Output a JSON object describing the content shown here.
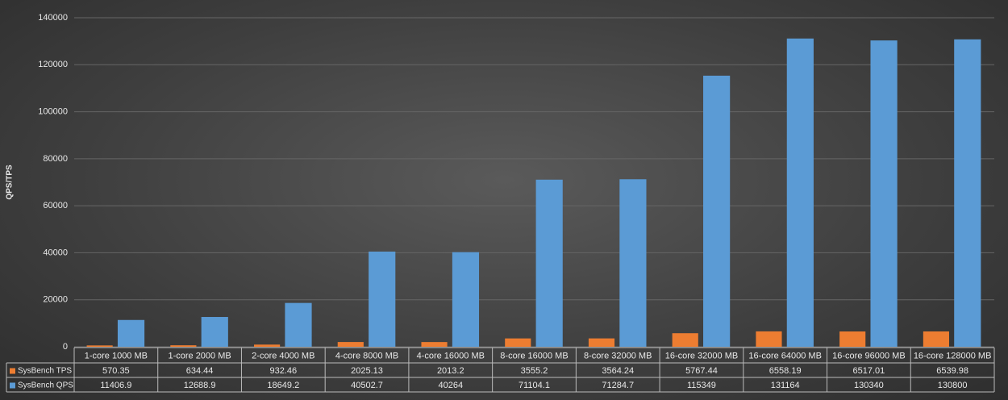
{
  "chart_data": {
    "type": "bar",
    "y_label": "QPS/TPS",
    "categories": [
      "1-core 1000 MB",
      "1-core 2000 MB",
      "2-core 4000 MB",
      "4-core 8000 MB",
      "4-core 16000 MB",
      "8-core 16000 MB",
      "8-core 32000 MB",
      "16-core 32000 MB",
      "16-core 64000 MB",
      "16-core 96000 MB",
      "16-core 128000 MB"
    ],
    "series": [
      {
        "name": "SysBench TPS",
        "color": "#ed7d31",
        "values": [
          570.35,
          634.44,
          932.46,
          2025.13,
          2013.2,
          3555.2,
          3564.24,
          5767.44,
          6558.19,
          6517.01,
          6539.98
        ]
      },
      {
        "name": "SysBench QPS",
        "color": "#5b9bd5",
        "values": [
          11406.9,
          12688.9,
          18649.2,
          40502.7,
          40264,
          71104.1,
          71284.7,
          115349,
          131164,
          130340,
          130800
        ]
      }
    ],
    "ylim": [
      0,
      140000
    ],
    "yticks": [
      0,
      20000,
      40000,
      60000,
      80000,
      100000,
      120000,
      140000
    ],
    "grid": true,
    "data_table": true
  }
}
